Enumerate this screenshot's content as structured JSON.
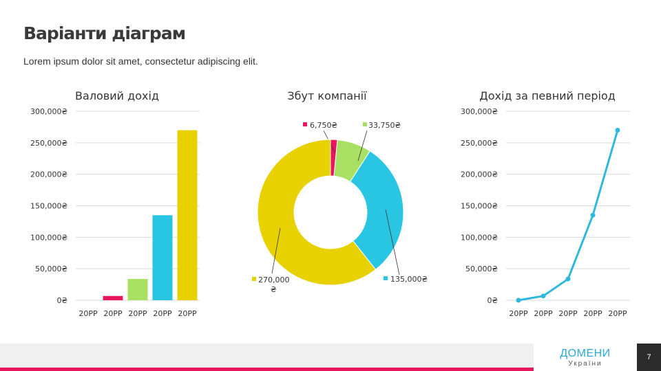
{
  "slide": {
    "title": "Варіанти діаграм",
    "subtitle": "Lorem ipsum dolor sit amet, consectetur adipiscing elit.",
    "page_number": "7"
  },
  "logo": {
    "main": "ДОМЕНИ",
    "sub": "України"
  },
  "colors": {
    "crimson": "#e8175d",
    "green": "#a8e063",
    "cyan": "#29c6e3",
    "yellow": "#e8d100",
    "line": "#2fb8de",
    "grid": "#d9d9d9"
  },
  "chart_data": [
    {
      "type": "bar",
      "title": "Валовий дохід",
      "categories": [
        "20PP",
        "20PP",
        "20PP",
        "20PP",
        "20PP"
      ],
      "values": [
        0,
        6750,
        33750,
        135000,
        270000
      ],
      "colors": [
        "#e8175d",
        "#e8175d",
        "#a8e063",
        "#29c6e3",
        "#e8d100"
      ],
      "ylim": [
        0,
        300000
      ],
      "yticks": [
        "0₴",
        "50,000₴",
        "100,000₴",
        "150,000₴",
        "200,000₴",
        "250,000₴",
        "300,000₴"
      ],
      "grid": true
    },
    {
      "type": "pie",
      "title": "Збут компанії",
      "donut": true,
      "slices": [
        {
          "label": "6,750₴",
          "value": 6750,
          "color": "#e8175d"
        },
        {
          "label": "33,750₴",
          "value": 33750,
          "color": "#a8e063"
        },
        {
          "label": "135,000₴",
          "value": 135000,
          "color": "#29c6e3"
        },
        {
          "label": "270,000 ₴",
          "value": 270000,
          "color": "#e8d100"
        }
      ]
    },
    {
      "type": "line",
      "title": "Дохід за певний період",
      "categories": [
        "20PP",
        "20PP",
        "20PP",
        "20PP",
        "20PP"
      ],
      "values": [
        0,
        6750,
        33750,
        135000,
        270000
      ],
      "ylim": [
        0,
        300000
      ],
      "yticks": [
        "0₴",
        "50,000₴",
        "100,000₴",
        "150,000₴",
        "200,000₴",
        "250,000₴",
        "300,000₴"
      ],
      "grid": true
    }
  ]
}
